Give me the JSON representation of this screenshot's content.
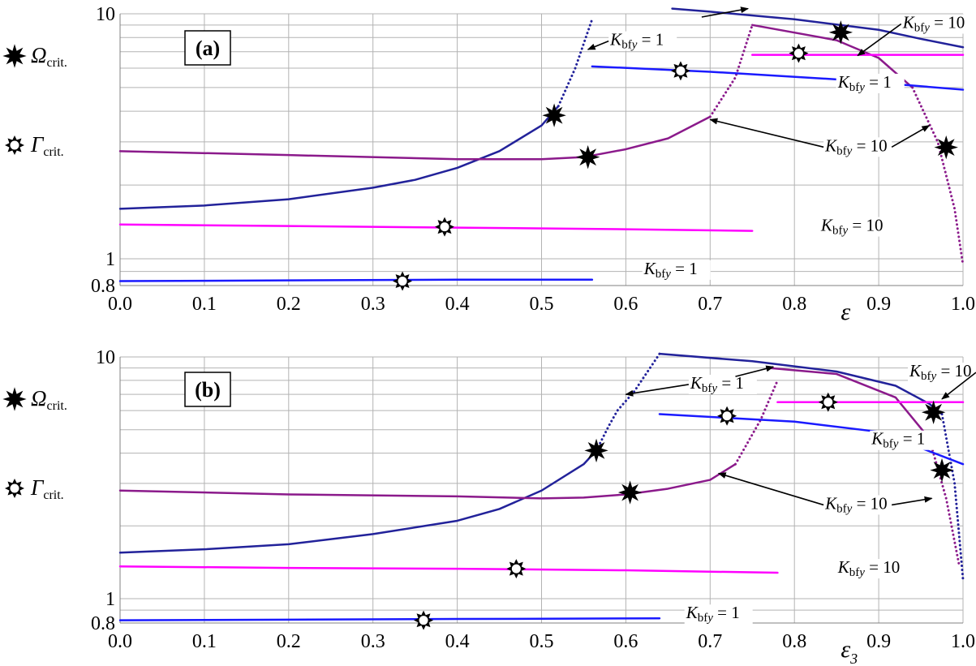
{
  "chart_data": [
    {
      "type": "line",
      "panel_label": "(a)",
      "xlabel": "ε",
      "yscale": "log",
      "xlim": [
        0.0,
        1.0
      ],
      "ylim": [
        0.8,
        10
      ],
      "xticks": [
        "0.0",
        "0.1",
        "0.2",
        "0.3",
        "0.4",
        "0.5",
        "0.6",
        "0.7",
        "0.8",
        "0.9",
        "1.0"
      ],
      "yticks": [
        "0.8",
        "1",
        "10"
      ],
      "grid": true,
      "legend": [
        {
          "symbol": "filled-star",
          "label": "Ω",
          "subscript": "crit."
        },
        {
          "symbol": "open-star",
          "label": "Γ",
          "subscript": "crit."
        }
      ],
      "series": [
        {
          "group": "Omega",
          "k": "1",
          "color": "#22229a",
          "style": "solid",
          "x": [
            0.0,
            0.1,
            0.2,
            0.3,
            0.35,
            0.4,
            0.45,
            0.5,
            0.52
          ],
          "y": [
            1.6,
            1.65,
            1.75,
            1.95,
            2.1,
            2.35,
            2.75,
            3.5,
            4.2
          ]
        },
        {
          "group": "Omega",
          "k": "1",
          "color": "#22229a",
          "style": "dotted",
          "x": [
            0.52,
            0.54,
            0.56
          ],
          "y": [
            4.2,
            6.0,
            9.5
          ]
        },
        {
          "group": "Omega",
          "k": "1",
          "color": "#22229a",
          "style": "solid",
          "x": [
            0.655,
            0.7,
            0.8,
            0.9,
            0.95,
            1.0
          ],
          "y": [
            10.5,
            10.2,
            9.5,
            8.6,
            7.9,
            7.3
          ]
        },
        {
          "group": "Omega",
          "k": "10",
          "color": "#8b1a8b",
          "style": "solid",
          "x": [
            0.0,
            0.2,
            0.4,
            0.5,
            0.55,
            0.6,
            0.65,
            0.7
          ],
          "y": [
            2.75,
            2.65,
            2.55,
            2.55,
            2.6,
            2.8,
            3.1,
            3.8
          ]
        },
        {
          "group": "Omega",
          "k": "10",
          "color": "#8b1a8b",
          "style": "dotted",
          "x": [
            0.7,
            0.73,
            0.75
          ],
          "y": [
            3.8,
            5.5,
            9.0
          ]
        },
        {
          "group": "Omega",
          "k": "10",
          "color": "#8b1a8b",
          "style": "solid",
          "x": [
            0.75,
            0.85,
            0.9,
            0.94
          ],
          "y": [
            9.0,
            7.8,
            6.6,
            5.0
          ]
        },
        {
          "group": "Omega",
          "k": "10",
          "color": "#8b1a8b",
          "style": "dotted",
          "x": [
            0.94,
            0.97,
            0.99,
            1.0
          ],
          "y": [
            5.0,
            3.0,
            1.6,
            0.95
          ]
        },
        {
          "group": "Gamma",
          "k": "1",
          "color": "#1a1aff",
          "style": "solid",
          "x": [
            0.0,
            0.2,
            0.4,
            0.56
          ],
          "y": [
            0.83,
            0.835,
            0.84,
            0.84
          ]
        },
        {
          "group": "Gamma",
          "k": "1",
          "color": "#1a1aff",
          "style": "solid",
          "x": [
            0.56,
            0.7,
            0.85,
            1.0
          ],
          "y": [
            6.1,
            5.8,
            5.4,
            4.9
          ]
        },
        {
          "group": "Gamma",
          "k": "10",
          "color": "#ff00ff",
          "style": "solid",
          "x": [
            0.0,
            0.2,
            0.4,
            0.6,
            0.75
          ],
          "y": [
            1.38,
            1.36,
            1.34,
            1.32,
            1.3
          ]
        },
        {
          "group": "Gamma",
          "k": "10",
          "color": "#ff00ff",
          "style": "solid",
          "x": [
            0.75,
            0.9,
            1.0
          ],
          "y": [
            6.8,
            6.8,
            6.8
          ]
        }
      ],
      "markers": [
        {
          "type": "filled",
          "x": 0.515,
          "y": 3.85
        },
        {
          "type": "filled",
          "x": 0.555,
          "y": 2.6
        },
        {
          "type": "filled",
          "x": 0.855,
          "y": 8.4
        },
        {
          "type": "filled",
          "x": 0.98,
          "y": 2.85
        },
        {
          "type": "open",
          "x": 0.335,
          "y": 0.83
        },
        {
          "type": "open",
          "x": 0.385,
          "y": 1.35
        },
        {
          "type": "open",
          "x": 0.665,
          "y": 5.85
        },
        {
          "type": "open",
          "x": 0.805,
          "y": 6.9
        }
      ],
      "annotations": [
        {
          "k": "1",
          "text_x": 0.62,
          "text_y": 7.45,
          "arrow_to": [
            {
              "x": 0.555,
              "y": 7.15
            }
          ]
        },
        {
          "k": "1",
          "text_x": 0.89,
          "text_y": 5.0,
          "arrow_to": []
        },
        {
          "k": "10",
          "text_x": 0.967,
          "text_y": 8.75,
          "arrow_to": [
            {
              "x": 0.875,
              "y": 6.75
            }
          ]
        },
        {
          "k": "10",
          "text_x": 0.875,
          "text_y": 2.75,
          "arrow_to": [
            {
              "x": 0.7,
              "y": 3.7
            },
            {
              "x": 0.96,
              "y": 3.5
            }
          ]
        },
        {
          "k": "10",
          "text_x": 0.87,
          "text_y": 1.3,
          "arrow_to": []
        },
        {
          "k": "1",
          "text_x": 0.66,
          "text_y": 0.88,
          "arrow_to": []
        }
      ],
      "extra_arrows": [
        {
          "from": {
            "x": 0.69,
            "y": 9.7
          },
          "to": {
            "x": 0.745,
            "y": 10.5
          }
        }
      ]
    },
    {
      "type": "line",
      "panel_label": "(b)",
      "xlabel": "ε",
      "xlabel_sub": "3",
      "yscale": "log",
      "xlim": [
        0.0,
        1.0
      ],
      "ylim": [
        0.8,
        10
      ],
      "xticks": [
        "0.0",
        "0.1",
        "0.2",
        "0.3",
        "0.4",
        "0.5",
        "0.6",
        "0.7",
        "0.8",
        "0.9",
        "1.0"
      ],
      "yticks": [
        "0.8",
        "1",
        "10"
      ],
      "grid": true,
      "legend": [
        {
          "symbol": "filled-star",
          "label": "Ω",
          "subscript": "crit."
        },
        {
          "symbol": "open-star",
          "label": "Γ",
          "subscript": "crit."
        }
      ],
      "series": [
        {
          "group": "Omega",
          "k": "1",
          "color": "#22229a",
          "style": "solid",
          "x": [
            0.0,
            0.1,
            0.2,
            0.3,
            0.4,
            0.45,
            0.5,
            0.55,
            0.565
          ],
          "y": [
            1.55,
            1.6,
            1.68,
            1.85,
            2.1,
            2.35,
            2.8,
            3.6,
            4.1
          ]
        },
        {
          "group": "Omega",
          "k": "1",
          "color": "#22229a",
          "style": "dotted",
          "x": [
            0.565,
            0.58,
            0.59,
            0.61,
            0.64
          ],
          "y": [
            4.1,
            5.2,
            6.0,
            7.2,
            10.3
          ]
        },
        {
          "group": "Omega",
          "k": "1",
          "color": "#22229a",
          "style": "solid",
          "x": [
            0.64,
            0.75,
            0.85,
            0.92,
            0.96,
            0.975
          ],
          "y": [
            10.3,
            9.6,
            8.7,
            7.6,
            6.4,
            5.8
          ]
        },
        {
          "group": "Omega",
          "k": "1",
          "color": "#22229a",
          "style": "dotted",
          "x": [
            0.975,
            0.99,
            1.0
          ],
          "y": [
            5.8,
            3.0,
            1.2
          ]
        },
        {
          "group": "Omega",
          "k": "10",
          "color": "#8b1a8b",
          "style": "solid",
          "x": [
            0.0,
            0.2,
            0.4,
            0.5,
            0.55,
            0.6,
            0.65,
            0.7,
            0.73
          ],
          "y": [
            2.8,
            2.7,
            2.65,
            2.6,
            2.62,
            2.7,
            2.85,
            3.1,
            3.6
          ]
        },
        {
          "group": "Omega",
          "k": "10",
          "color": "#8b1a8b",
          "style": "dotted",
          "x": [
            0.73,
            0.76,
            0.78
          ],
          "y": [
            3.6,
            5.5,
            8.0
          ]
        },
        {
          "group": "Omega",
          "k": "10",
          "color": "#8b1a8b",
          "style": "solid",
          "x": [
            0.77,
            0.85,
            0.92,
            0.96
          ],
          "y": [
            9.0,
            8.5,
            6.8,
            4.6
          ]
        },
        {
          "group": "Omega",
          "k": "10",
          "color": "#8b1a8b",
          "style": "dotted",
          "x": [
            0.96,
            0.98,
            0.995
          ],
          "y": [
            4.6,
            2.6,
            1.4
          ]
        },
        {
          "group": "Gamma",
          "k": "1",
          "color": "#1a1aff",
          "style": "solid",
          "x": [
            0.0,
            0.2,
            0.4,
            0.64
          ],
          "y": [
            0.82,
            0.825,
            0.83,
            0.835
          ]
        },
        {
          "group": "Gamma",
          "k": "1",
          "color": "#1a1aff",
          "style": "solid",
          "x": [
            0.64,
            0.8,
            0.9,
            1.0
          ],
          "y": [
            5.8,
            5.4,
            4.9,
            3.6
          ]
        },
        {
          "group": "Gamma",
          "k": "10",
          "color": "#ff00ff",
          "style": "solid",
          "x": [
            0.0,
            0.2,
            0.4,
            0.6,
            0.78
          ],
          "y": [
            1.36,
            1.34,
            1.33,
            1.31,
            1.28
          ]
        },
        {
          "group": "Gamma",
          "k": "10",
          "color": "#ff00ff",
          "style": "solid",
          "x": [
            0.78,
            0.9,
            1.0
          ],
          "y": [
            6.5,
            6.5,
            6.5
          ]
        }
      ],
      "markers": [
        {
          "type": "filled",
          "x": 0.565,
          "y": 4.1
        },
        {
          "type": "filled",
          "x": 0.605,
          "y": 2.75
        },
        {
          "type": "filled",
          "x": 0.965,
          "y": 5.9
        },
        {
          "type": "filled",
          "x": 0.975,
          "y": 3.4
        },
        {
          "type": "open",
          "x": 0.36,
          "y": 0.82
        },
        {
          "type": "open",
          "x": 0.47,
          "y": 1.33
        },
        {
          "type": "open",
          "x": 0.72,
          "y": 5.7
        },
        {
          "type": "open",
          "x": 0.84,
          "y": 6.5
        }
      ],
      "annotations": [
        {
          "k": "1",
          "text_x": 0.715,
          "text_y": 7.4,
          "arrow_to": [
            {
              "x": 0.6,
              "y": 7.0
            }
          ]
        },
        {
          "k": "1",
          "text_x": 0.93,
          "text_y": 4.35,
          "arrow_to": []
        },
        {
          "k": "10",
          "text_x": 0.975,
          "text_y": 8.3,
          "arrow_to": [
            {
              "x": 0.975,
              "y": 6.7
            }
          ]
        },
        {
          "k": "10",
          "text_x": 0.875,
          "text_y": 2.35,
          "arrow_to": [
            {
              "x": 0.71,
              "y": 3.3
            },
            {
              "x": 0.963,
              "y": 2.6
            }
          ]
        },
        {
          "k": "10",
          "text_x": 0.89,
          "text_y": 1.28,
          "arrow_to": []
        },
        {
          "k": "1",
          "text_x": 0.71,
          "text_y": 0.835,
          "arrow_to": []
        }
      ],
      "extra_arrows": [
        {
          "from": {
            "x": 0.73,
            "y": 8.3
          },
          "to": {
            "x": 0.775,
            "y": 9.1
          }
        }
      ]
    }
  ]
}
